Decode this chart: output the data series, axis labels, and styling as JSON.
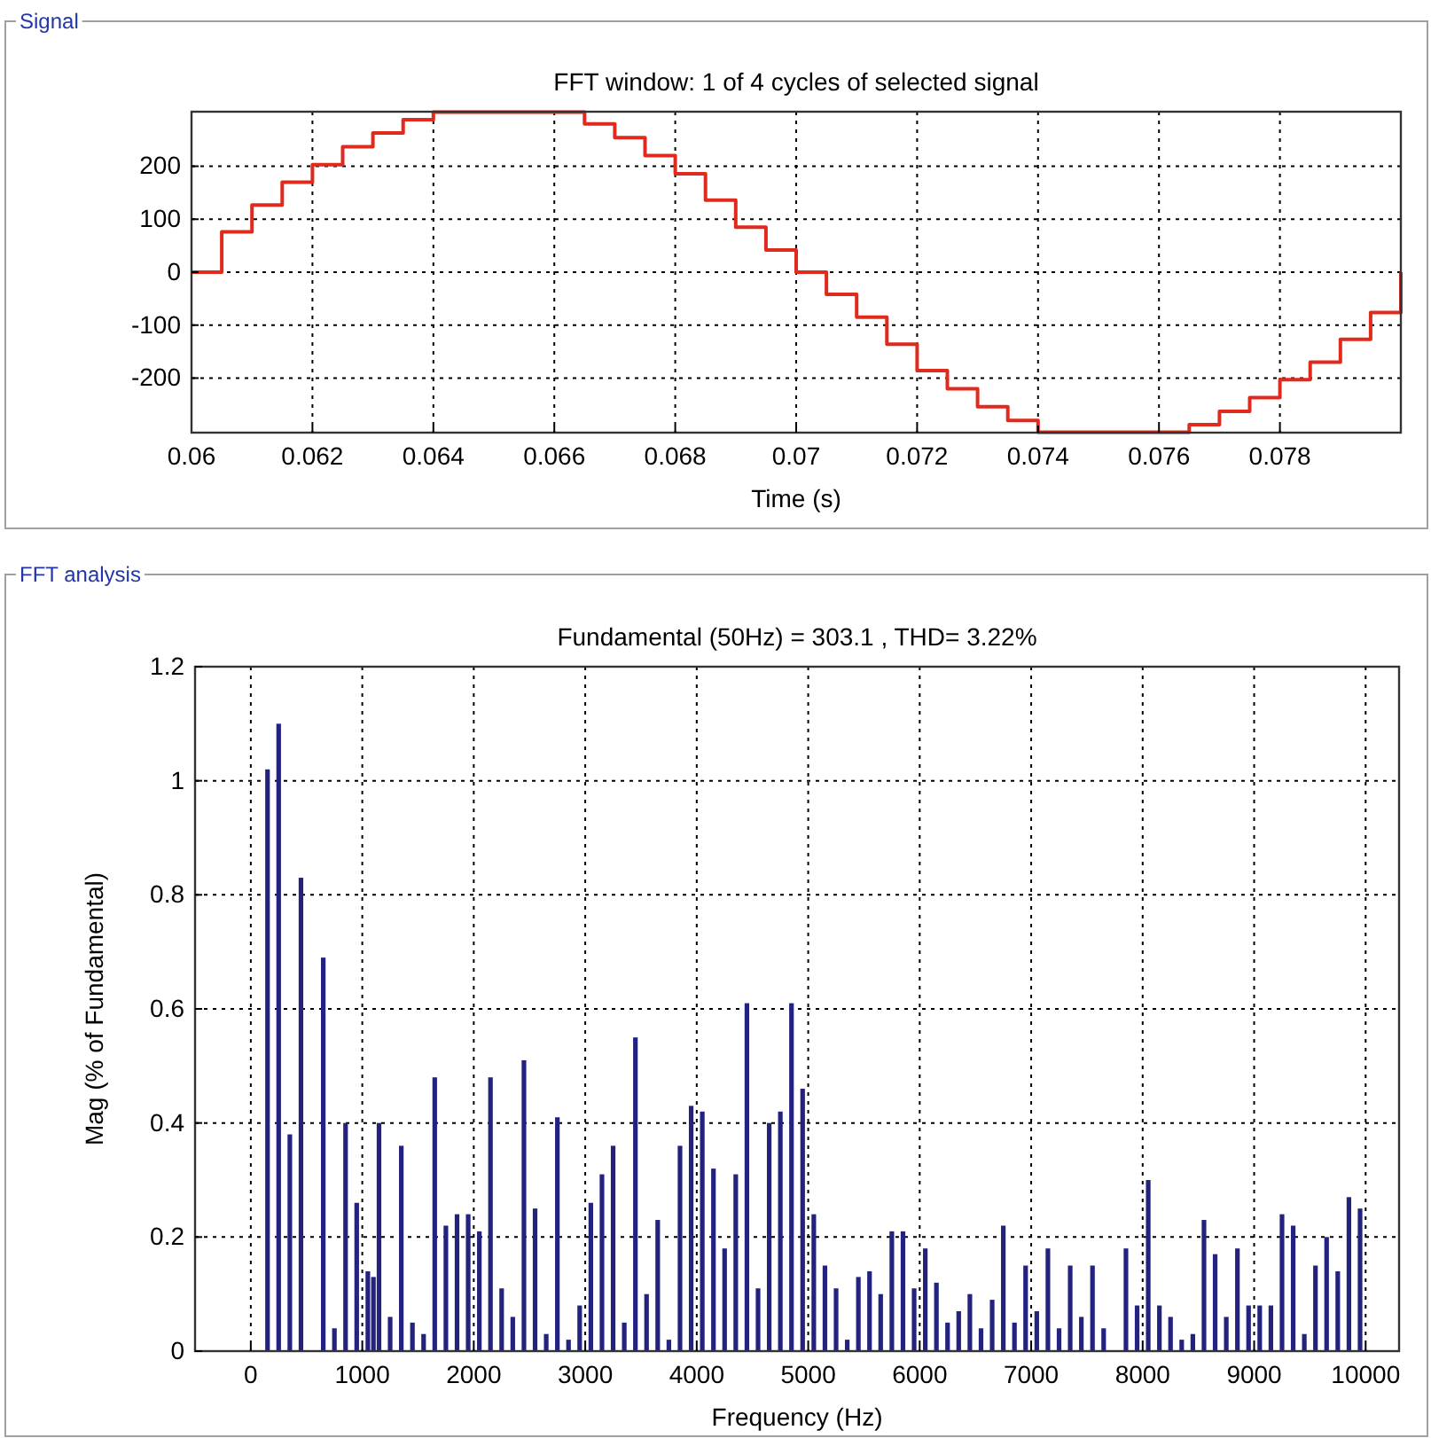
{
  "chart_data": [
    {
      "type": "step",
      "title": "FFT window: 1 of 4 cycles of selected signal",
      "xlabel": "Time (s)",
      "annotations": [
        "Signal"
      ],
      "color": "#e02a1e",
      "x": [
        0.06,
        0.0605,
        0.061,
        0.0615,
        0.062,
        0.0625,
        0.063,
        0.0635,
        0.064,
        0.0645,
        0.065,
        0.0655,
        0.066,
        0.0665,
        0.067,
        0.0675,
        0.068,
        0.0685,
        0.069,
        0.0695,
        0.07,
        0.0705,
        0.071,
        0.0715,
        0.072,
        0.0725,
        0.073,
        0.0735,
        0.074,
        0.0745,
        0.075,
        0.0755,
        0.076,
        0.0765,
        0.077,
        0.0775,
        0.078,
        0.0785,
        0.079,
        0.0795,
        0.08
      ],
      "values": [
        0,
        76,
        127,
        170,
        203,
        237,
        263,
        288,
        302,
        302,
        302,
        302,
        302,
        280,
        254,
        220,
        186,
        136,
        85,
        42,
        0,
        -42,
        -85,
        -136,
        -186,
        -220,
        -254,
        -280,
        -302,
        -302,
        -302,
        -302,
        -302,
        -288,
        -263,
        -237,
        -203,
        -170,
        -127,
        -76,
        0
      ],
      "xlim": [
        0.06,
        0.08
      ],
      "ylim": [
        -303,
        303
      ],
      "xticks": [
        0.06,
        0.062,
        0.064,
        0.066,
        0.068,
        0.07,
        0.072,
        0.074,
        0.076,
        0.078
      ],
      "yticks": [
        -200,
        -100,
        0,
        100,
        200
      ],
      "grid": true
    },
    {
      "type": "bar",
      "title": "Fundamental (50Hz) = 303.1 , THD= 3.22%",
      "xlabel": "Frequency (Hz)",
      "ylabel": "Mag (% of Fundamental)",
      "annotations": [
        "FFT analysis"
      ],
      "color": "#23237f",
      "x": [
        150,
        250,
        350,
        450,
        650,
        750,
        850,
        950,
        1050,
        1100,
        1150,
        1250,
        1350,
        1450,
        1550,
        1650,
        1750,
        1850,
        1950,
        2050,
        2150,
        2250,
        2350,
        2450,
        2550,
        2650,
        2750,
        2850,
        2950,
        3050,
        3150,
        3250,
        3350,
        3450,
        3550,
        3650,
        3750,
        3850,
        3950,
        4050,
        4150,
        4250,
        4350,
        4450,
        4550,
        4650,
        4750,
        4850,
        4950,
        5050,
        5150,
        5250,
        5350,
        5450,
        5550,
        5650,
        5750,
        5850,
        5950,
        6050,
        6150,
        6250,
        6350,
        6450,
        6550,
        6650,
        6750,
        6850,
        6950,
        7050,
        7150,
        7250,
        7350,
        7450,
        7550,
        7650,
        7850,
        7950,
        8050,
        8150,
        8250,
        8350,
        8450,
        8550,
        8650,
        8750,
        8850,
        8950,
        9050,
        9150,
        9250,
        9350,
        9450,
        9550,
        9650,
        9750,
        9850,
        9950
      ],
      "values": [
        1.02,
        1.1,
        0.38,
        0.83,
        0.69,
        0.04,
        0.4,
        0.26,
        0.14,
        0.13,
        0.4,
        0.06,
        0.36,
        0.05,
        0.03,
        0.48,
        0.22,
        0.24,
        0.24,
        0.21,
        0.48,
        0.11,
        0.06,
        0.51,
        0.25,
        0.03,
        0.41,
        0.02,
        0.08,
        0.26,
        0.31,
        0.36,
        0.05,
        0.55,
        0.1,
        0.23,
        0.02,
        0.36,
        0.43,
        0.42,
        0.32,
        0.18,
        0.31,
        0.61,
        0.11,
        0.4,
        0.42,
        0.61,
        0.46,
        0.24,
        0.15,
        0.11,
        0.02,
        0.13,
        0.14,
        0.1,
        0.21,
        0.21,
        0.11,
        0.18,
        0.12,
        0.05,
        0.07,
        0.1,
        0.04,
        0.09,
        0.22,
        0.05,
        0.15,
        0.07,
        0.18,
        0.04,
        0.15,
        0.06,
        0.15,
        0.04,
        0.18,
        0.08,
        0.3,
        0.08,
        0.06,
        0.02,
        0.03,
        0.23,
        0.17,
        0.06,
        0.18,
        0.08,
        0.08,
        0.08,
        0.24,
        0.22,
        0.03,
        0.15,
        0.2,
        0.14,
        0.27,
        0.25
      ],
      "xlim": [
        -500,
        10300
      ],
      "ylim": [
        0,
        1.2
      ],
      "xticks": [
        0,
        1000,
        2000,
        3000,
        4000,
        5000,
        6000,
        7000,
        8000,
        9000,
        10000
      ],
      "yticks": [
        0,
        0.2,
        0.4,
        0.6,
        0.8,
        1,
        1.2
      ],
      "grid": true
    }
  ]
}
